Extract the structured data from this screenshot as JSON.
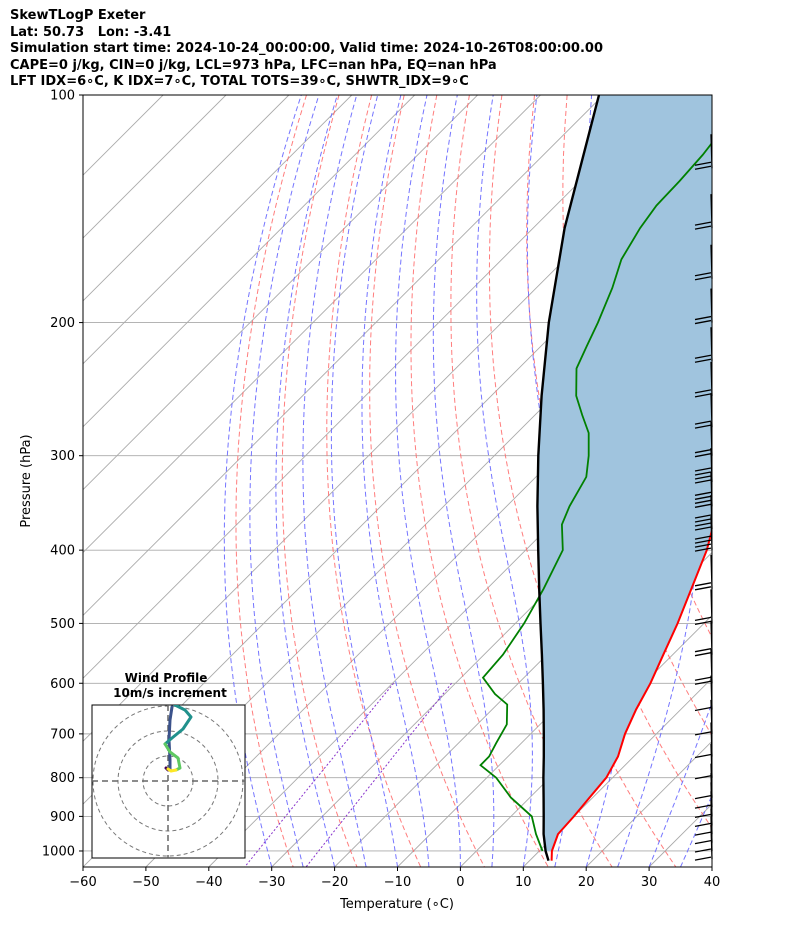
{
  "header": {
    "line1": "SkewTLogP Exeter",
    "line2": "Lat: 50.73   Lon: -3.41",
    "line3": "Simulation start time: 2024-10-24_00:00:00, Valid time: 2024-10-26T08:00:00.00",
    "line4": "CAPE=0 j/kg, CIN=0 j/kg, LCL=973 hPa, LFC=nan hPa, EQ=nan hPa",
    "line5": "LFT IDX=6∘C, K IDX=7∘C, TOTAL TOTS=39∘C, SHWTR_IDX=9∘C"
  },
  "colors": {
    "temperature": "#ff0000",
    "dewpoint": "#008000",
    "parcel": "#000000",
    "shade": "#a0c4de",
    "dry_adiabat": "#ff6666",
    "moist_adiabat": "#6666ff",
    "mixing_ratio": "#8833cc",
    "isotherm": "#aaaaaa"
  },
  "chart_data": {
    "type": "line",
    "title": "",
    "xlabel": "Temperature (∘C)",
    "ylabel": "Pressure (hPa)",
    "xlim": [
      -60,
      40
    ],
    "ylim": [
      1050,
      100
    ],
    "y_scale": "log",
    "x_ticks": [
      "−60",
      "−50",
      "−40",
      "−30",
      "−20",
      "−10",
      "0",
      "10",
      "20",
      "30",
      "40"
    ],
    "y_ticks": [
      "100",
      "200",
      "300",
      "400",
      "500",
      "600",
      "700",
      "800",
      "900",
      "1000"
    ],
    "grid": true,
    "series": [
      {
        "values": [
          [
            1030,
            13.5
          ],
          [
            1000,
            12.0
          ],
          [
            950,
            10.3
          ],
          [
            900,
            10.0
          ],
          [
            850,
            9.5
          ],
          [
            800,
            9.0
          ],
          [
            750,
            7.5
          ],
          [
            700,
            5.0
          ],
          [
            650,
            2.9
          ],
          [
            600,
            1.0
          ],
          [
            550,
            -1.5
          ],
          [
            500,
            -4.2
          ],
          [
            450,
            -7.5
          ],
          [
            400,
            -11.2
          ],
          [
            370,
            -14.2
          ],
          [
            350,
            -16.6
          ],
          [
            330,
            -19.3
          ],
          [
            310,
            -22.1
          ],
          [
            290,
            -24.6
          ],
          [
            280,
            -25.6
          ],
          [
            270,
            -25.6
          ],
          [
            260,
            -26.0
          ],
          [
            250,
            -27.0
          ],
          [
            240,
            -28.5
          ],
          [
            220,
            -31.6
          ],
          [
            200,
            -36.2
          ],
          [
            180,
            -41.7
          ],
          [
            170,
            -44.3
          ],
          [
            150,
            -48.0
          ],
          [
            140,
            -51.6
          ],
          [
            130,
            -54.2
          ],
          [
            120,
            -57.3
          ],
          [
            110,
            -61.7
          ],
          [
            100,
            -65.6
          ]
        ]
      },
      {
        "values": [
          [
            1000,
            10.5
          ],
          [
            950,
            6.8
          ],
          [
            900,
            3.3
          ],
          [
            850,
            -3.0
          ],
          [
            800,
            -8.5
          ],
          [
            770,
            -13.0
          ],
          [
            750,
            -13.0
          ],
          [
            720,
            -14.0
          ],
          [
            680,
            -15.3
          ],
          [
            640,
            -18.4
          ],
          [
            620,
            -22.0
          ],
          [
            590,
            -26.5
          ],
          [
            550,
            -27.0
          ],
          [
            500,
            -28.6
          ],
          [
            450,
            -31.0
          ],
          [
            400,
            -34.1
          ],
          [
            370,
            -38.3
          ],
          [
            350,
            -40.0
          ],
          [
            320,
            -42.0
          ],
          [
            300,
            -45.0
          ],
          [
            280,
            -48.6
          ],
          [
            265,
            -52.5
          ],
          [
            250,
            -56.5
          ],
          [
            230,
            -60.8
          ],
          [
            215,
            -62.7
          ],
          [
            200,
            -64.7
          ],
          [
            180,
            -67.9
          ],
          [
            165,
            -71.0
          ],
          [
            150,
            -73.0
          ],
          [
            140,
            -74.0
          ],
          [
            130,
            -74.2
          ],
          [
            120,
            -74.7
          ],
          [
            110,
            -75.7
          ],
          [
            100,
            -77.6
          ]
        ]
      },
      {
        "values": [
          [
            1030,
            13.0
          ],
          [
            1000,
            11.0
          ],
          [
            950,
            8.0
          ],
          [
            900,
            5.2
          ],
          [
            850,
            2.2
          ],
          [
            800,
            -1.0
          ],
          [
            750,
            -4.3
          ],
          [
            700,
            -7.9
          ],
          [
            650,
            -11.8
          ],
          [
            600,
            -16.1
          ],
          [
            550,
            -20.8
          ],
          [
            500,
            -26.0
          ],
          [
            450,
            -31.7
          ],
          [
            400,
            -38.0
          ],
          [
            350,
            -45.1
          ],
          [
            300,
            -53.0
          ],
          [
            250,
            -62.0
          ],
          [
            200,
            -72.5
          ],
          [
            150,
            -85.0
          ],
          [
            100,
            -100.7
          ]
        ]
      }
    ]
  },
  "hodograph": {
    "title": "Wind Profile",
    "subtitle": "10m/s increment",
    "path_colors": [
      "#440154",
      "#3b528b",
      "#21918c",
      "#5ec962",
      "#fde725"
    ]
  }
}
